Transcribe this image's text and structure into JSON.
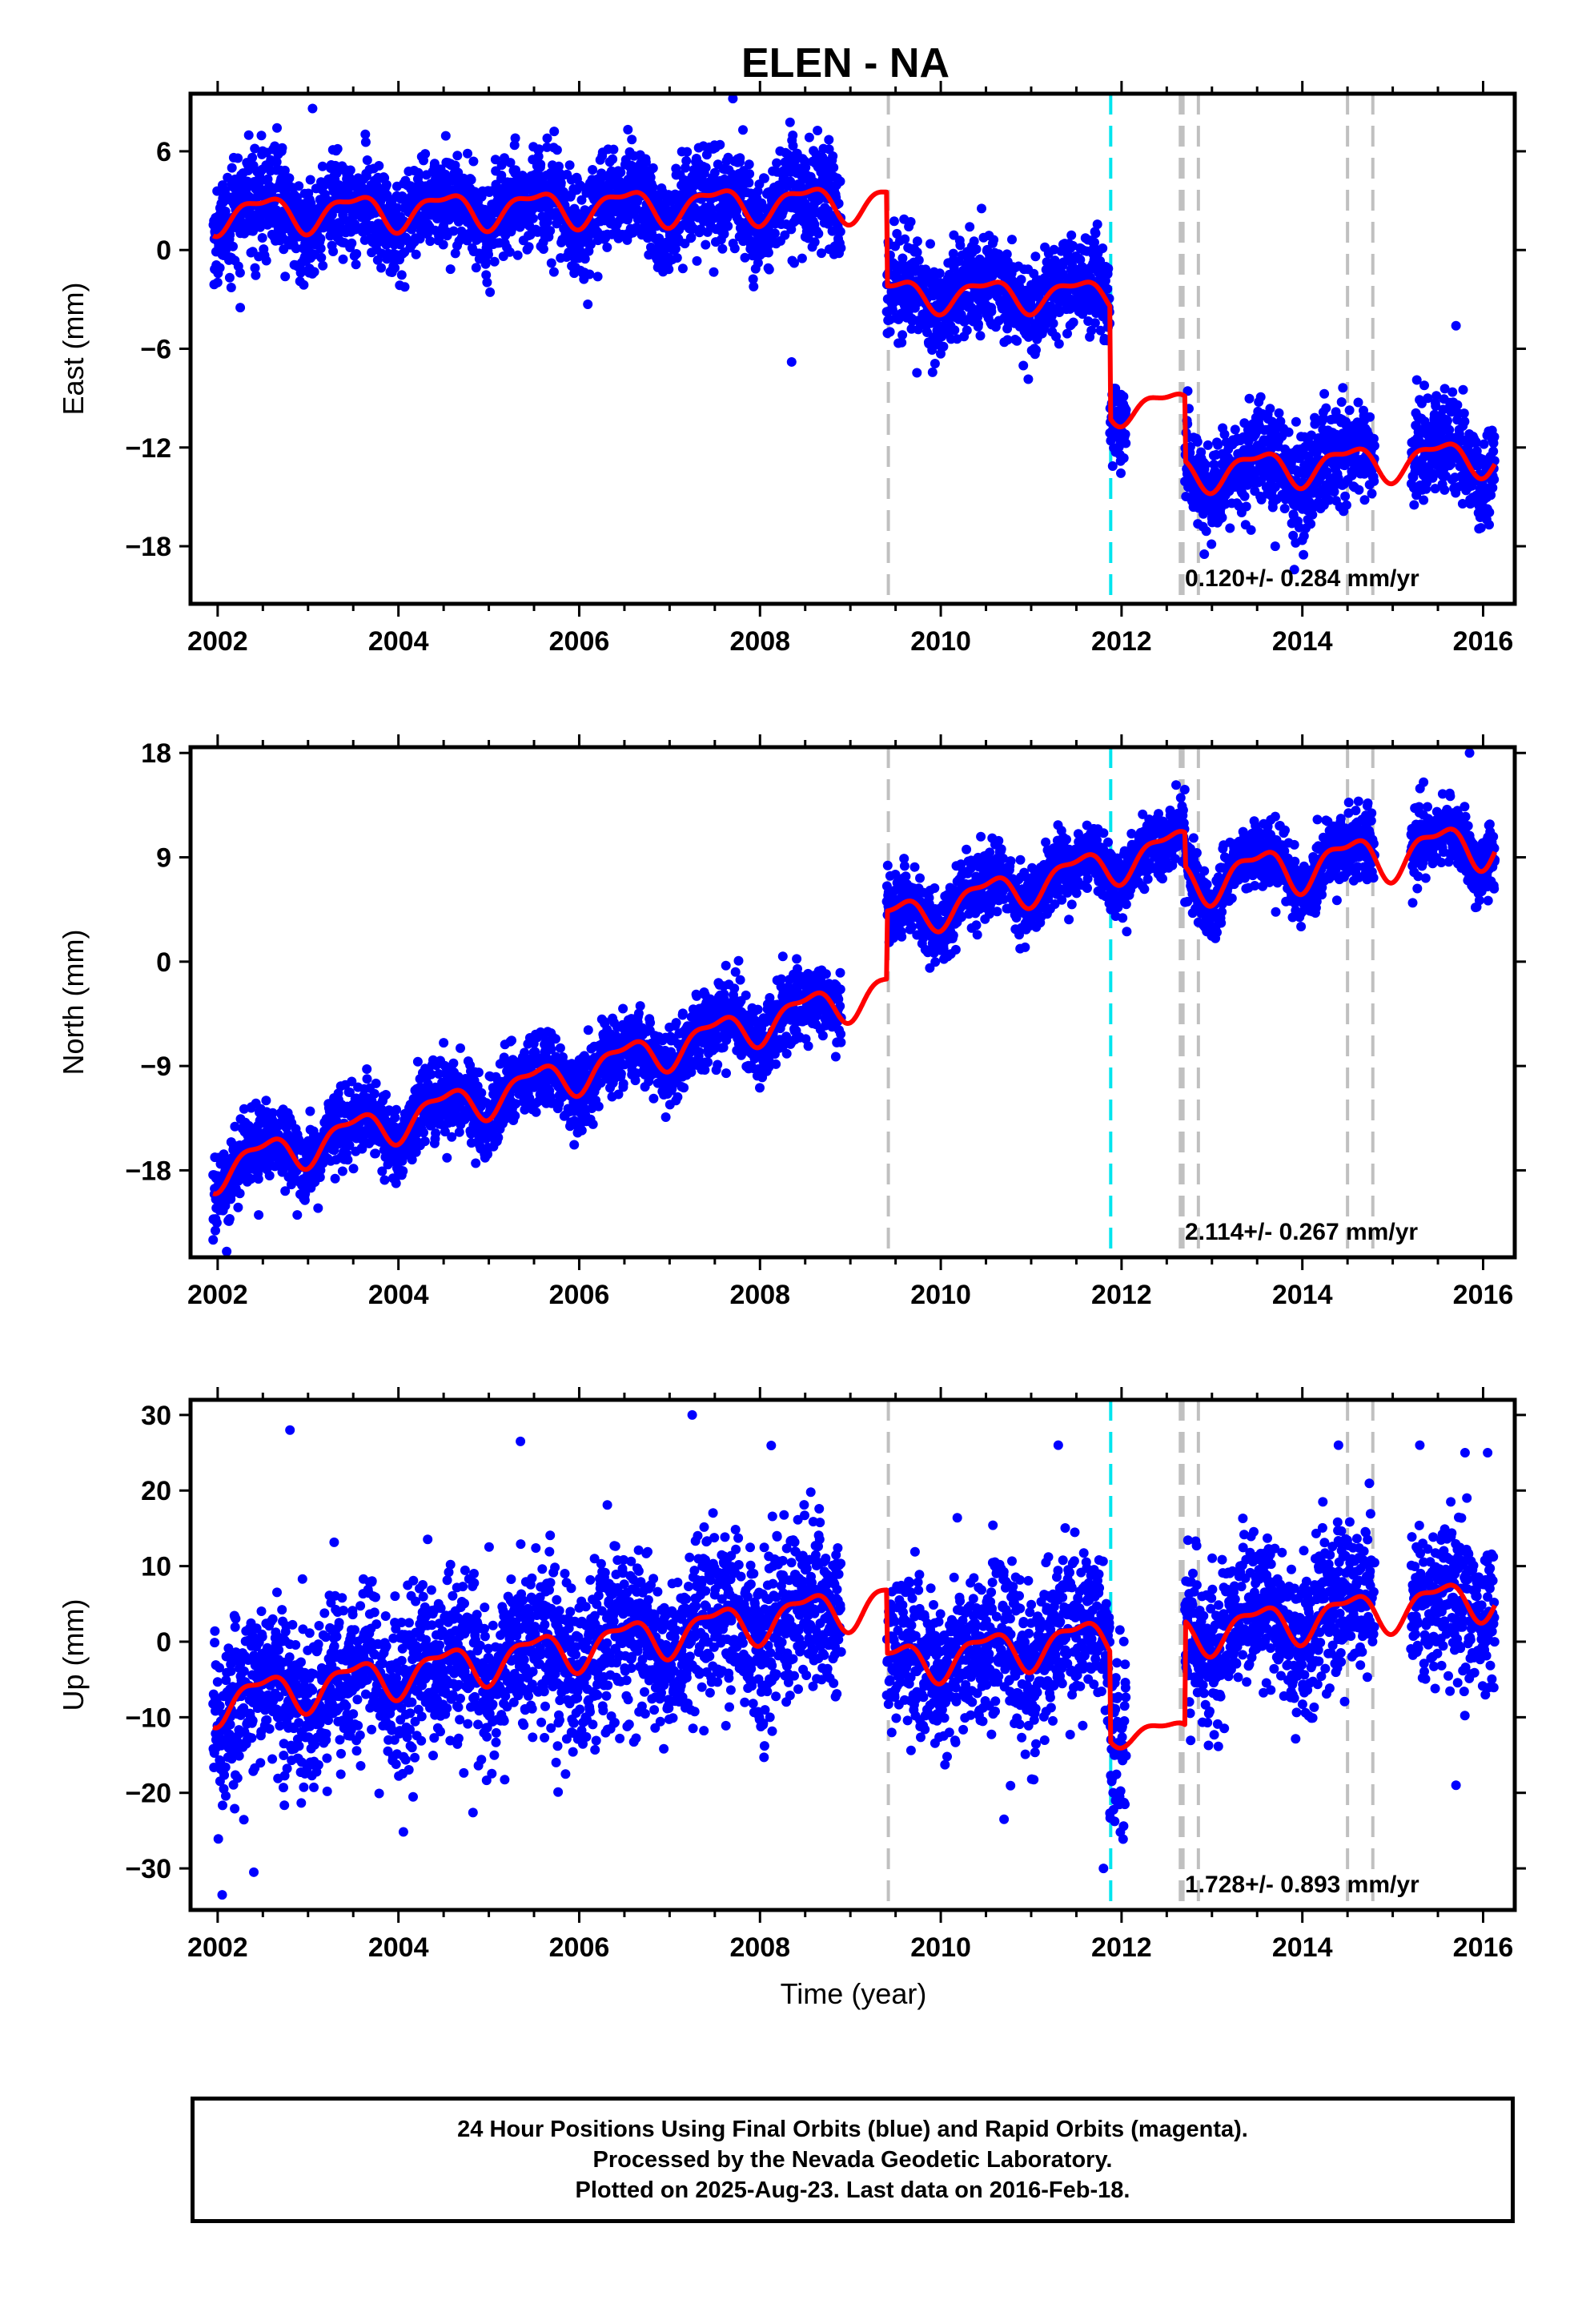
{
  "figure": {
    "title": "ELEN - NA",
    "xlabel": "Time (year)"
  },
  "chart_data": [
    {
      "type": "scatter",
      "component": "east",
      "ylabel": "East (mm)",
      "xlim": [
        2001.7,
        2016.35
      ],
      "ylim": [
        -21.5,
        9.5
      ],
      "yticks": [
        -18,
        -12,
        -6,
        0,
        6
      ],
      "xticks": [
        2002,
        2004,
        2006,
        2008,
        2010,
        2012,
        2014,
        2016
      ],
      "rate_label": "0.120+/- 0.284 mm/yr",
      "series": [
        {
          "name": "24 Hour Positions Using Final Orbits (blue)",
          "color": "#0000ff",
          "kind": "points"
        },
        {
          "name": "",
          "color": "#ff0000",
          "kind": "model"
        }
      ],
      "segments": [
        {
          "start": 2001.95,
          "end": 2009.4,
          "offset": 2.2,
          "slope": 0.1,
          "amp": 1.0,
          "spread": 1.5
        },
        {
          "start": 2009.4,
          "end": 2011.87,
          "offset": -2.7,
          "slope": 0,
          "amp": 0.9,
          "spread": 1.4
        },
        {
          "start": 2011.87,
          "end": 2012.7,
          "offset": -9.5,
          "slope": 0,
          "amp": 0.9,
          "spread": 1.4
        },
        {
          "start": 2012.7,
          "end": 2016.13,
          "offset": -13.5,
          "slope": 0.3,
          "amp": 1.0,
          "spread": 1.5
        }
      ],
      "gaps": [
        [
          2008.9,
          2009.4
        ],
        [
          2012.05,
          2012.7
        ],
        [
          2014.8,
          2015.2
        ]
      ],
      "outliers": [
        [
          2003.05,
          8.6
        ],
        [
          2007.7,
          9.2
        ],
        [
          2008.35,
          -6.8
        ],
        [
          2015.7,
          -4.6
        ],
        [
          2013.7,
          -18.0
        ],
        [
          2002.25,
          -3.5
        ]
      ],
      "vlines": [
        {
          "x": 2009.42,
          "color": "#c0c0c0"
        },
        {
          "x": 2011.88,
          "color": "#00e5ee"
        },
        {
          "x": 2012.65,
          "color": "#c0c0c0"
        },
        {
          "x": 2012.68,
          "color": "#c0c0c0"
        },
        {
          "x": 2012.85,
          "color": "#c0c0c0"
        },
        {
          "x": 2014.5,
          "color": "#c0c0c0"
        },
        {
          "x": 2014.78,
          "color": "#c0c0c0"
        }
      ]
    },
    {
      "type": "scatter",
      "component": "north",
      "ylabel": "North (mm)",
      "xlim": [
        2001.7,
        2016.35
      ],
      "ylim": [
        -25.5,
        18.5
      ],
      "yticks": [
        -18,
        -9,
        0,
        9,
        18
      ],
      "xticks": [
        2002,
        2004,
        2006,
        2008,
        2010,
        2012,
        2014,
        2016
      ],
      "rate_label": "2.114+/- 0.267 mm/yr",
      "series": [
        {
          "name": "24 Hour Positions Using Final Orbits (blue)",
          "color": "#0000ff",
          "kind": "points"
        },
        {
          "name": "",
          "color": "#ff0000",
          "kind": "model"
        }
      ],
      "segments": [
        {
          "start": 2001.95,
          "end": 2009.4,
          "offset": -18.0,
          "slope": 2.1,
          "amp": 1.5,
          "spread": 1.6
        },
        {
          "start": 2009.4,
          "end": 2012.7,
          "offset": 3.5,
          "slope": 2.0,
          "amp": 1.5,
          "spread": 1.4
        },
        {
          "start": 2012.7,
          "end": 2016.13,
          "offset": 7.0,
          "slope": 1.0,
          "amp": 1.8,
          "spread": 1.5
        }
      ],
      "gaps": [
        [
          2008.9,
          2009.4
        ],
        [
          2014.8,
          2015.2
        ]
      ],
      "outliers": [
        [
          2001.95,
          -24.0
        ],
        [
          2002.1,
          -25.0
        ],
        [
          2015.85,
          18.0
        ],
        [
          2002.8,
          -13.5
        ],
        [
          2004.5,
          -7.0
        ]
      ],
      "vlines": [
        {
          "x": 2009.42,
          "color": "#c0c0c0"
        },
        {
          "x": 2011.88,
          "color": "#00e5ee"
        },
        {
          "x": 2012.65,
          "color": "#c0c0c0"
        },
        {
          "x": 2012.68,
          "color": "#c0c0c0"
        },
        {
          "x": 2012.85,
          "color": "#c0c0c0"
        },
        {
          "x": 2014.5,
          "color": "#c0c0c0"
        },
        {
          "x": 2014.78,
          "color": "#c0c0c0"
        }
      ]
    },
    {
      "type": "scatter",
      "component": "up",
      "ylabel": "Up (mm)",
      "xlim": [
        2001.7,
        2016.35
      ],
      "ylim": [
        -35.5,
        32.0
      ],
      "yticks": [
        -30,
        -20,
        -10,
        0,
        10,
        20,
        30
      ],
      "xticks": [
        2002,
        2004,
        2006,
        2008,
        2010,
        2012,
        2014,
        2016
      ],
      "rate_label": "1.728+/- 0.893 mm/yr",
      "series": [
        {
          "name": "24 Hour Positions Using Final Orbits (blue)",
          "color": "#0000ff",
          "kind": "points"
        },
        {
          "name": "",
          "color": "#ff0000",
          "kind": "model"
        }
      ],
      "segments": [
        {
          "start": 2001.95,
          "end": 2009.4,
          "offset": -8.0,
          "slope": 1.8,
          "amp": 2.5,
          "spread": 5.5
        },
        {
          "start": 2009.4,
          "end": 2011.87,
          "offset": -3.0,
          "slope": 1.5,
          "amp": 2.5,
          "spread": 5.0
        },
        {
          "start": 2011.87,
          "end": 2012.7,
          "offset": -12.0,
          "slope": 0,
          "amp": 1.5,
          "spread": 6.0
        },
        {
          "start": 2012.7,
          "end": 2016.13,
          "offset": 1.0,
          "slope": 1.5,
          "amp": 2.5,
          "spread": 5.0
        }
      ],
      "gaps": [
        [
          2008.9,
          2009.4
        ],
        [
          2012.05,
          2012.7
        ],
        [
          2014.8,
          2015.2
        ]
      ],
      "outliers": [
        [
          2002.8,
          28.0
        ],
        [
          2007.25,
          30.0
        ],
        [
          2005.35,
          26.5
        ],
        [
          2011.3,
          26.0
        ],
        [
          2014.4,
          26.0
        ],
        [
          2015.3,
          26.0
        ],
        [
          2015.8,
          25.0
        ],
        [
          2016.05,
          25.0
        ],
        [
          2002.05,
          -33.5
        ],
        [
          2002.4,
          -30.5
        ],
        [
          2011.8,
          -30.0
        ],
        [
          2015.7,
          -19.0
        ],
        [
          2010.7,
          -23.5
        ]
      ],
      "vlines": [
        {
          "x": 2009.42,
          "color": "#c0c0c0"
        },
        {
          "x": 2011.88,
          "color": "#00e5ee"
        },
        {
          "x": 2012.65,
          "color": "#c0c0c0"
        },
        {
          "x": 2012.68,
          "color": "#c0c0c0"
        },
        {
          "x": 2012.85,
          "color": "#c0c0c0"
        },
        {
          "x": 2014.5,
          "color": "#c0c0c0"
        },
        {
          "x": 2014.78,
          "color": "#c0c0c0"
        }
      ]
    }
  ],
  "footer": {
    "line1": "24 Hour Positions Using Final Orbits (blue) and Rapid Orbits (magenta).",
    "line2": "Processed by the Nevada Geodetic Laboratory.",
    "line3": "Plotted on 2025-Aug-23. Last data on 2016-Feb-18."
  }
}
